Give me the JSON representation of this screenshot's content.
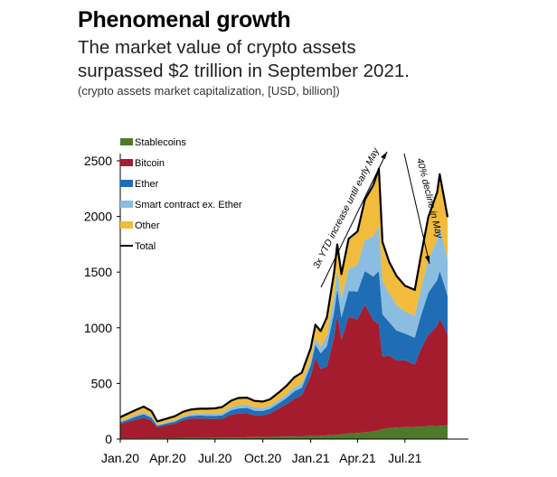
{
  "header": {
    "title": "Phenomenal growth",
    "subtitle_line1": "The market value of crypto assets",
    "subtitle_line2": "surpassed $2 trillion in September 2021.",
    "note": "(crypto assets market capitalization, [USD, billion])"
  },
  "chart_data": {
    "type": "area",
    "stacked": true,
    "title": "",
    "xlabel": "",
    "ylabel": "",
    "ylim": [
      0,
      2600
    ],
    "xlim": [
      "2020-01-01",
      "2021-10-31"
    ],
    "y_ticks": [
      0,
      500,
      1000,
      1500,
      2000,
      2500
    ],
    "x_ticks": [
      {
        "date": "2020-01-01",
        "label": "Jan.20"
      },
      {
        "date": "2020-04-01",
        "label": "Apr.20"
      },
      {
        "date": "2020-07-01",
        "label": "Jul.20"
      },
      {
        "date": "2020-10-01",
        "label": "Oct.20"
      },
      {
        "date": "2021-01-01",
        "label": "Jan.21"
      },
      {
        "date": "2021-04-01",
        "label": "Apr.21"
      },
      {
        "date": "2021-07-01",
        "label": "Jul.21"
      }
    ],
    "legend_position": "top-left",
    "grid": false,
    "x": [
      "2020-01-01",
      "2020-01-15",
      "2020-02-01",
      "2020-02-15",
      "2020-03-01",
      "2020-03-12",
      "2020-04-01",
      "2020-04-15",
      "2020-05-01",
      "2020-05-15",
      "2020-06-01",
      "2020-06-15",
      "2020-07-01",
      "2020-07-15",
      "2020-08-01",
      "2020-08-15",
      "2020-09-01",
      "2020-09-15",
      "2020-10-01",
      "2020-10-15",
      "2020-11-01",
      "2020-11-15",
      "2020-12-01",
      "2020-12-15",
      "2021-01-01",
      "2021-01-10",
      "2021-01-20",
      "2021-02-01",
      "2021-02-15",
      "2021-02-21",
      "2021-03-01",
      "2021-03-15",
      "2021-04-01",
      "2021-04-15",
      "2021-05-01",
      "2021-05-12",
      "2021-05-19",
      "2021-06-01",
      "2021-06-15",
      "2021-07-01",
      "2021-07-20",
      "2021-08-01",
      "2021-08-15",
      "2021-09-01",
      "2021-09-06",
      "2021-09-15",
      "2021-09-21"
    ],
    "series": [
      {
        "name": "Stablecoins",
        "color": "#4d7a2a",
        "values": [
          5,
          5,
          5,
          6,
          6,
          6,
          7,
          8,
          9,
          10,
          11,
          12,
          13,
          13,
          14,
          15,
          17,
          18,
          19,
          20,
          21,
          22,
          23,
          24,
          26,
          28,
          30,
          33,
          37,
          39,
          42,
          50,
          55,
          60,
          70,
          80,
          90,
          100,
          105,
          108,
          110,
          112,
          115,
          118,
          120,
          122,
          124
        ]
      },
      {
        "name": "Bitcoin",
        "color": "#a51c2f",
        "values": [
          130,
          150,
          170,
          185,
          160,
          100,
          120,
          130,
          160,
          175,
          175,
          170,
          168,
          170,
          205,
          215,
          215,
          195,
          195,
          210,
          255,
          290,
          340,
          370,
          540,
          700,
          600,
          620,
          880,
          1080,
          850,
          1050,
          1020,
          1150,
          1000,
          950,
          650,
          650,
          600,
          600,
          560,
          700,
          820,
          900,
          960,
          880,
          810
        ]
      },
      {
        "name": "Ether",
        "color": "#1f6db5",
        "values": [
          15,
          18,
          28,
          32,
          25,
          13,
          15,
          18,
          22,
          22,
          26,
          27,
          27,
          30,
          40,
          45,
          48,
          42,
          40,
          42,
          46,
          55,
          68,
          68,
          95,
          120,
          140,
          180,
          220,
          230,
          200,
          230,
          250,
          300,
          390,
          480,
          380,
          300,
          270,
          240,
          240,
          300,
          380,
          410,
          430,
          380,
          350
        ]
      },
      {
        "name": "Smart contract ex. Ether",
        "color": "#8bbde0",
        "values": [
          12,
          14,
          16,
          18,
          16,
          10,
          12,
          13,
          15,
          16,
          17,
          18,
          20,
          23,
          28,
          32,
          32,
          30,
          28,
          28,
          30,
          32,
          38,
          40,
          45,
          55,
          60,
          95,
          150,
          170,
          170,
          200,
          240,
          280,
          360,
          400,
          300,
          260,
          230,
          200,
          200,
          240,
          300,
          360,
          400,
          350,
          330
        ]
      },
      {
        "name": "Other",
        "color": "#f2bb3b",
        "values": [
          35,
          40,
          45,
          50,
          45,
          30,
          32,
          36,
          40,
          42,
          44,
          46,
          48,
          52,
          58,
          62,
          60,
          58,
          55,
          57,
          68,
          78,
          88,
          95,
          110,
          125,
          140,
          165,
          210,
          230,
          220,
          270,
          300,
          360,
          460,
          520,
          350,
          280,
          260,
          230,
          230,
          300,
          380,
          430,
          470,
          420,
          380
        ]
      }
    ],
    "total": {
      "name": "Total",
      "color": "#000000",
      "values": [
        197,
        227,
        264,
        291,
        252,
        159,
        186,
        205,
        246,
        265,
        273,
        273,
        276,
        288,
        345,
        369,
        372,
        343,
        337,
        357,
        420,
        477,
        557,
        597,
        816,
        1028,
        970,
        1093,
        1497,
        1749,
        1482,
        1800,
        1865,
        2150,
        2280,
        2430,
        1770,
        1590,
        1465,
        1378,
        1340,
        1652,
        1995,
        2218,
        2380,
        2152,
        1994
      ]
    },
    "annotations": [
      {
        "text": "3x YTD increase until early May"
      },
      {
        "text": "40% decline in May"
      }
    ]
  }
}
